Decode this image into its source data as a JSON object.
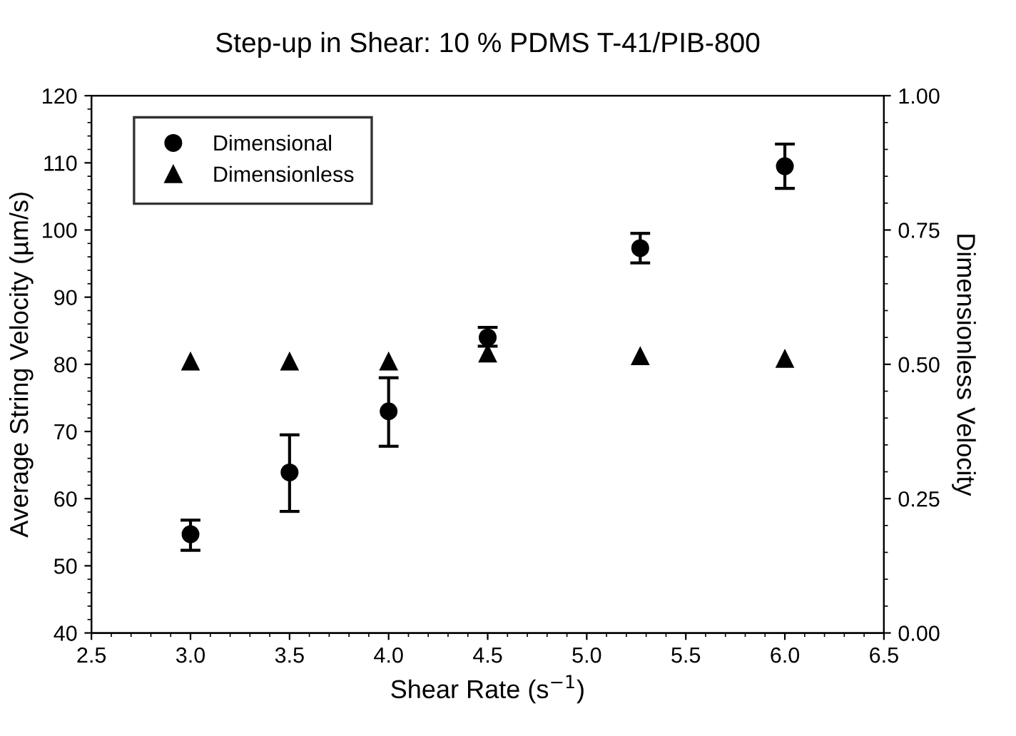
{
  "chart_data": {
    "type": "scatter",
    "title": "Step-up in Shear: 10 % PDMS T-41/PIB-800",
    "xlabel": "Shear Rate (s$^{−1}$)",
    "ylabel": "Average String Velocity (µm/s)",
    "y2label": "Dimensionless Velocity",
    "x": [
      3.0,
      3.5,
      4.0,
      4.5,
      5.27,
      6.0
    ],
    "series": [
      {
        "name": "Dimensional",
        "color": "#000000",
        "marker": "circle",
        "values": [
          54.7,
          63.9,
          73.0,
          84.0,
          97.3,
          109.5
        ],
        "errors": [
          [
            52.3,
            56.8
          ],
          [
            58.1,
            69.5
          ],
          [
            67.8,
            78.0
          ],
          [
            82.7,
            85.5
          ],
          [
            95.1,
            99.5
          ],
          [
            106.2,
            112.8
          ]
        ]
      },
      {
        "name": "Dimensionless",
        "color": "#000000",
        "marker": "triangle",
        "axis": "y2",
        "values": [
          0.505,
          0.505,
          0.505,
          0.52,
          0.515,
          0.51
        ]
      }
    ],
    "xlim": [
      2.5,
      6.5
    ],
    "xticks": [
      2.5,
      {
        "value": 3,
        "label": "3.0"
      },
      3.5,
      {
        "value": 4,
        "label": "4.0"
      },
      4.5,
      {
        "value": 5,
        "label": "5.0"
      },
      5.5,
      {
        "value": 6,
        "label": "6.0"
      },
      6.5
    ],
    "ylim": [
      40,
      120
    ],
    "yticks": [
      40,
      50,
      60,
      70,
      80,
      90,
      100,
      110,
      120
    ],
    "y2lim": [
      0,
      1
    ],
    "y2ticks": [
      {
        "value": 0,
        "label": "0.00"
      },
      {
        "value": 0.25,
        "label": "0.25"
      },
      {
        "value": 0.5,
        "label": "0.50"
      },
      {
        "value": 0.75,
        "label": "0.75"
      },
      {
        "value": 1,
        "label": "1.00"
      }
    ],
    "grid": false,
    "legend": "top left"
  }
}
